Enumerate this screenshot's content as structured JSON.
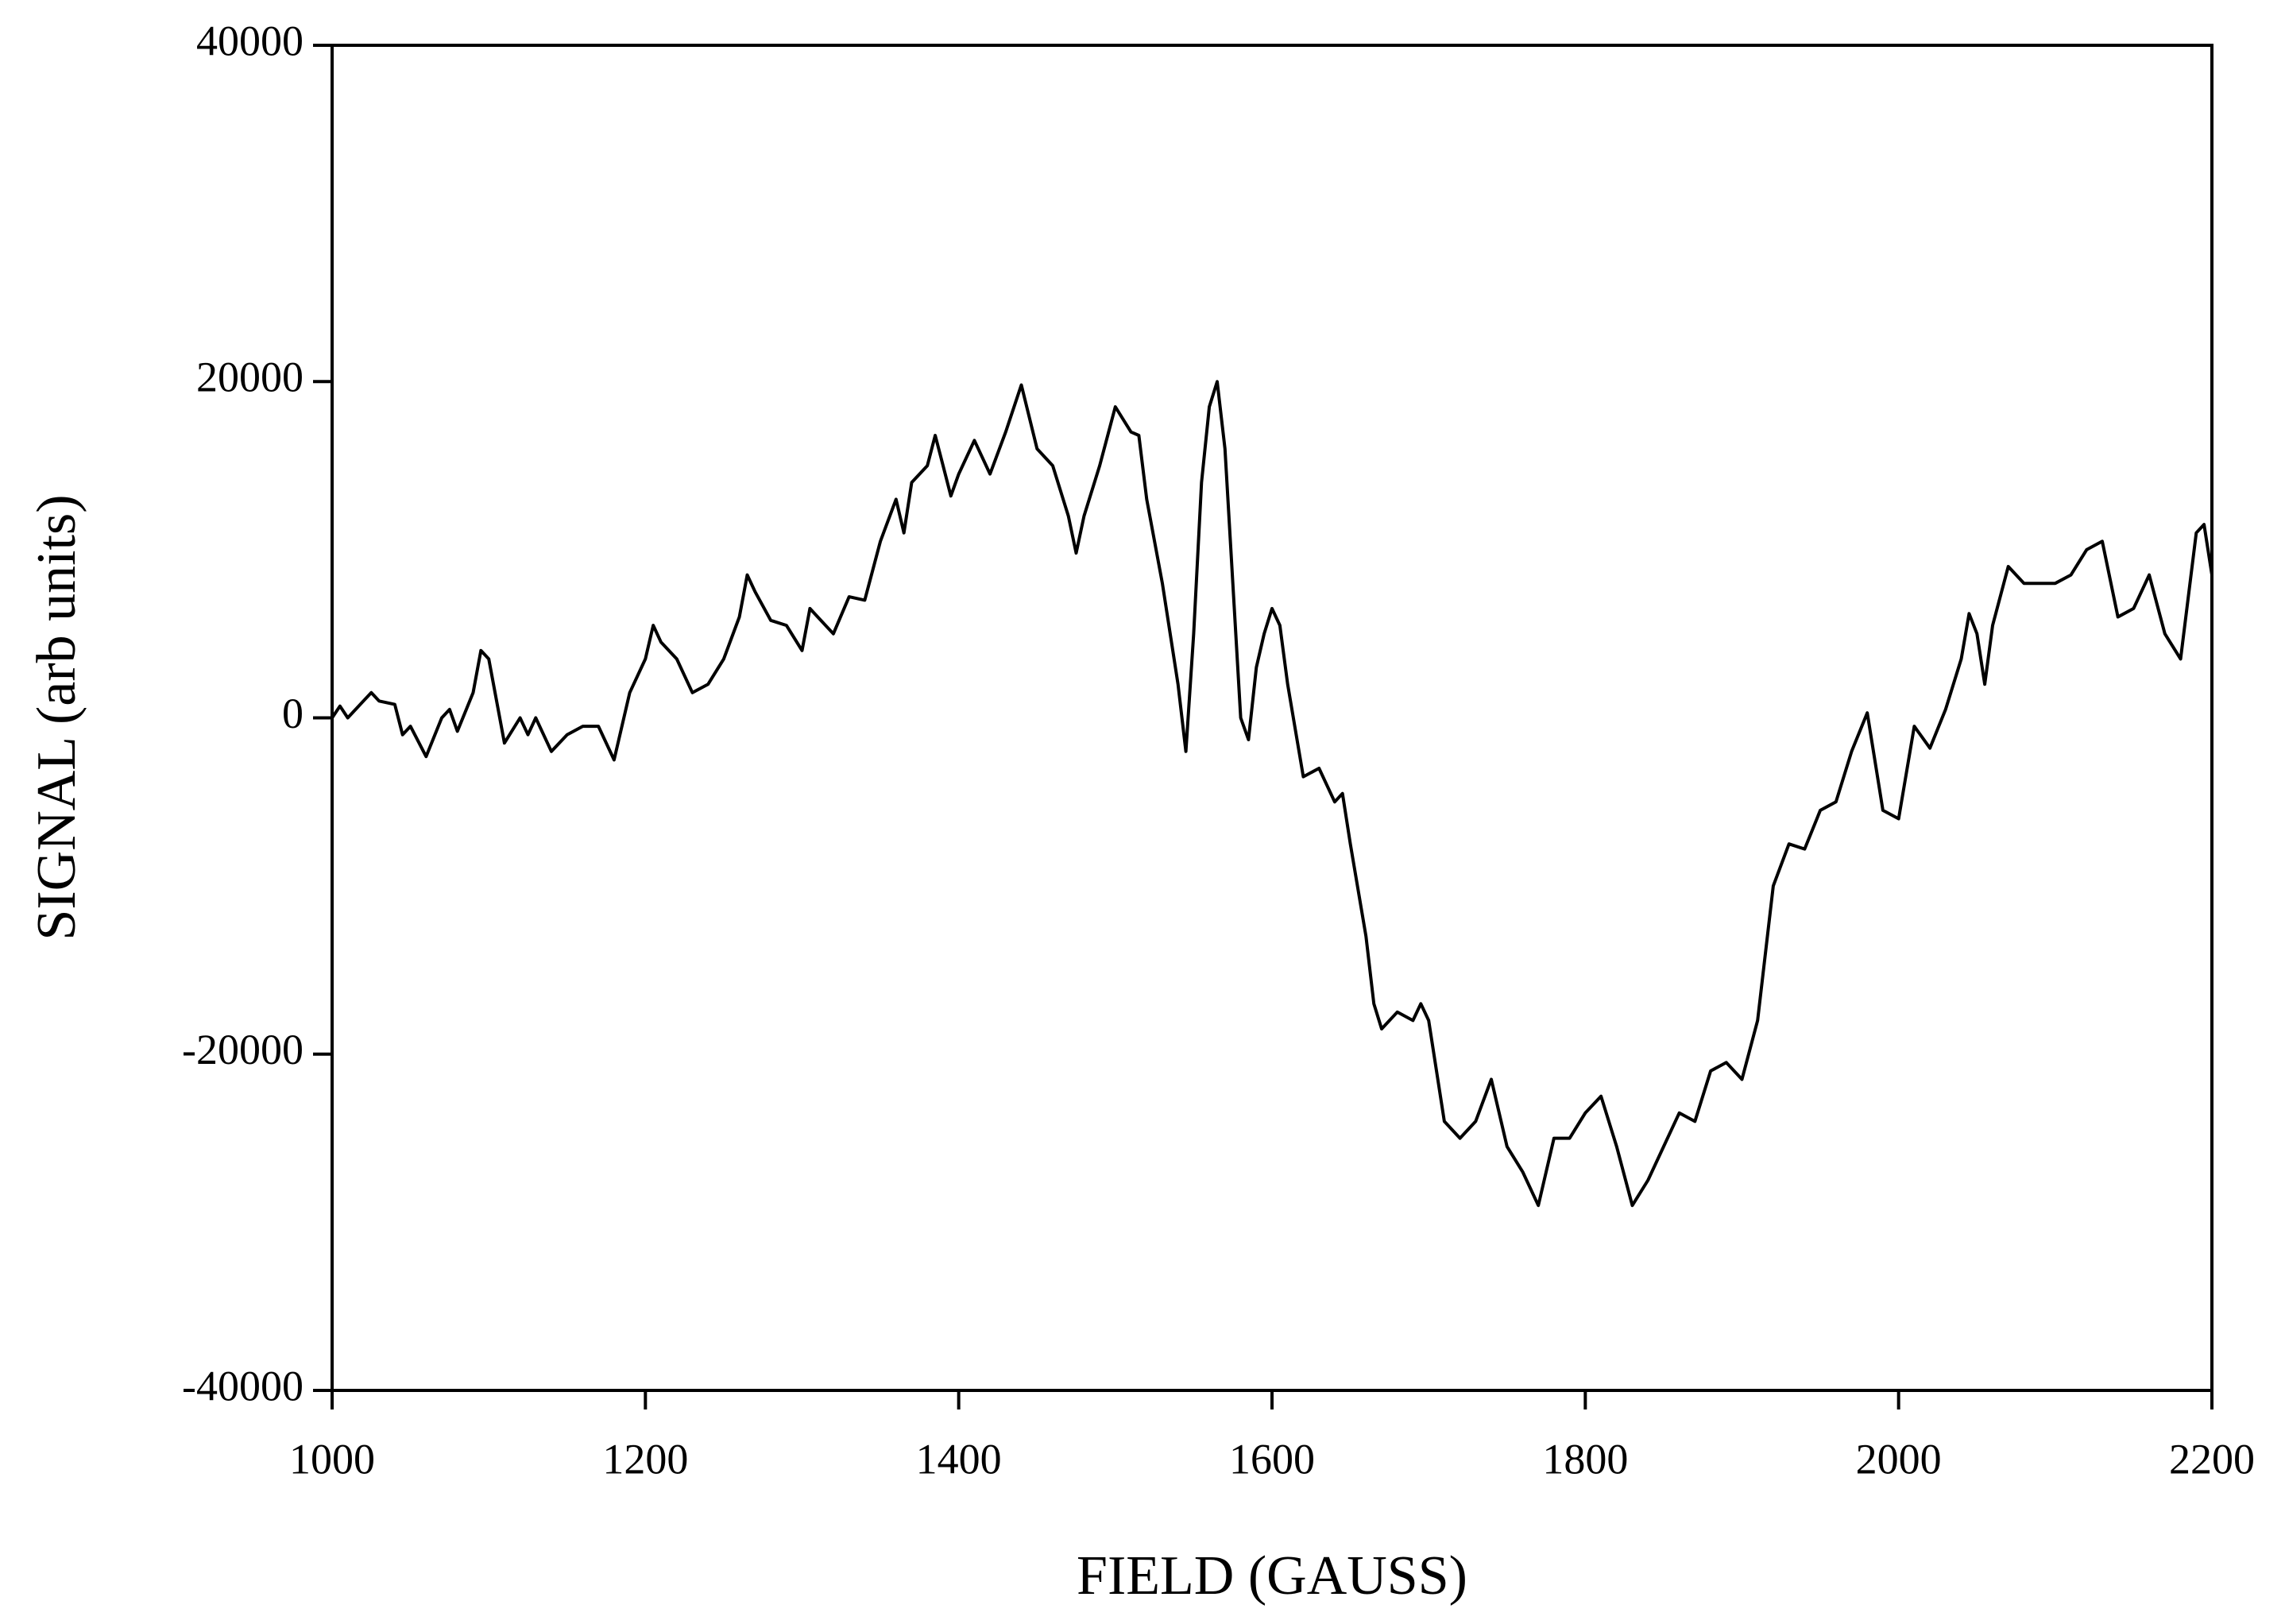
{
  "chart_data": {
    "type": "line",
    "x_label": "FIELD (GAUSS)",
    "y_label": "SIGNAL (arb units)",
    "xlim": [
      1000,
      2200
    ],
    "xticks": [
      1000,
      1200,
      1400,
      1600,
      1800,
      2000,
      2200
    ],
    "ylim": [
      -40000,
      40000
    ],
    "yticks": [
      -40000,
      -20000,
      0,
      20000,
      40000
    ],
    "color": "#000000",
    "grid": false,
    "x": [
      1000,
      1005,
      1010,
      1020,
      1025,
      1030,
      1040,
      1045,
      1050,
      1060,
      1070,
      1075,
      1080,
      1090,
      1095,
      1100,
      1110,
      1120,
      1125,
      1130,
      1140,
      1150,
      1160,
      1170,
      1180,
      1190,
      1200,
      1205,
      1210,
      1220,
      1230,
      1240,
      1250,
      1260,
      1265,
      1270,
      1280,
      1290,
      1300,
      1305,
      1310,
      1320,
      1330,
      1340,
      1350,
      1360,
      1365,
      1370,
      1380,
      1385,
      1390,
      1395,
      1400,
      1410,
      1420,
      1430,
      1440,
      1450,
      1460,
      1470,
      1475,
      1480,
      1490,
      1500,
      1510,
      1515,
      1520,
      1530,
      1540,
      1545,
      1550,
      1555,
      1560,
      1565,
      1570,
      1575,
      1580,
      1585,
      1590,
      1595,
      1600,
      1605,
      1610,
      1620,
      1630,
      1640,
      1645,
      1650,
      1660,
      1665,
      1670,
      1680,
      1690,
      1695,
      1700,
      1710,
      1720,
      1730,
      1740,
      1750,
      1760,
      1770,
      1780,
      1790,
      1800,
      1810,
      1820,
      1830,
      1840,
      1850,
      1860,
      1870,
      1880,
      1890,
      1900,
      1910,
      1920,
      1930,
      1940,
      1950,
      1960,
      1970,
      1980,
      1990,
      2000,
      2010,
      2020,
      2030,
      2040,
      2045,
      2050,
      2055,
      2060,
      2070,
      2080,
      2090,
      2100,
      2110,
      2120,
      2130,
      2140,
      2150,
      2160,
      2170,
      2180,
      2190,
      2195,
      2200
    ],
    "values": [
      0,
      700,
      0,
      1000,
      1500,
      1000,
      800,
      -1000,
      -500,
      -2300,
      0,
      500,
      -800,
      1500,
      4000,
      3500,
      -1500,
      0,
      -1000,
      0,
      -2000,
      -1000,
      -500,
      -500,
      -2500,
      1500,
      3500,
      5500,
      4500,
      3500,
      1500,
      2000,
      3500,
      6000,
      8500,
      7500,
      5800,
      5500,
      4000,
      6500,
      6000,
      5000,
      7200,
      7000,
      10500,
      13000,
      11000,
      14000,
      15000,
      16800,
      15000,
      13200,
      14500,
      16500,
      14500,
      17000,
      19800,
      16000,
      15000,
      12000,
      9800,
      12000,
      15000,
      18500,
      17000,
      16800,
      13000,
      8000,
      2000,
      -2000,
      5000,
      14000,
      18500,
      20000,
      16000,
      8000,
      0,
      -1300,
      3000,
      5000,
      6500,
      5500,
      2000,
      -3500,
      -3000,
      -5000,
      -4500,
      -7500,
      -13000,
      -17000,
      -18500,
      -17500,
      -18000,
      -17000,
      -18000,
      -24000,
      -25000,
      -24000,
      -21500,
      -25500,
      -27000,
      -29000,
      -25000,
      -25000,
      -23500,
      -22500,
      -25500,
      -29000,
      -27500,
      -25500,
      -23500,
      -24000,
      -21000,
      -20500,
      -21500,
      -18000,
      -10000,
      -7500,
      -7800,
      -5500,
      -5000,
      -2000,
      300,
      -5500,
      -6000,
      -500,
      -1800,
      500,
      3500,
      6200,
      5000,
      2000,
      5500,
      9000,
      8000,
      8000,
      8000,
      8500,
      10000,
      10500,
      6000,
      6500,
      8500,
      5000,
      3500,
      11000,
      11500,
      8500
    ]
  }
}
